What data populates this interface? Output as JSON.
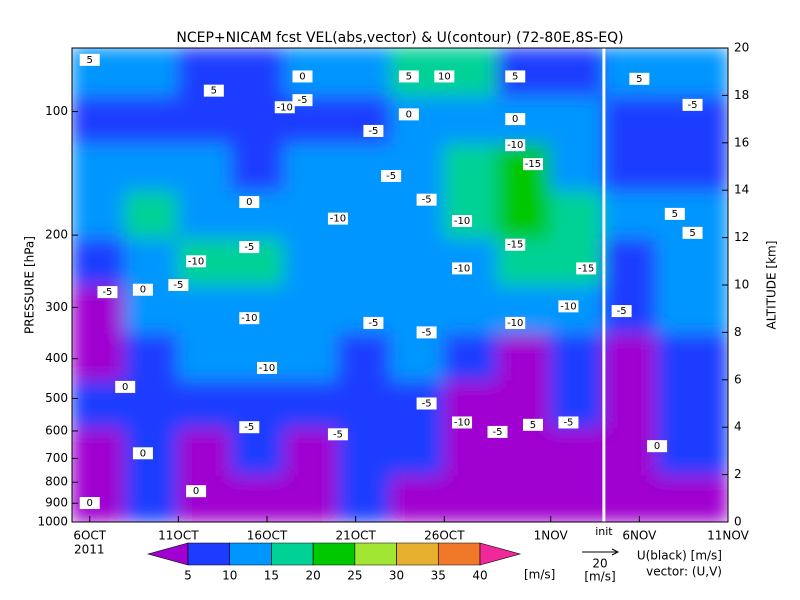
{
  "chart_data": {
    "type": "heatmap",
    "title": "NCEP+NICAM  fcst VEL(abs,vector) & U(contour)   (72-80E,8S-EQ)",
    "ylabel": "PRESSURE [hPa]",
    "y2label": "ALTITUDE [km]",
    "ylim": [
      1000,
      70
    ],
    "yscale": "log",
    "yticks": [
      100,
      200,
      300,
      400,
      500,
      600,
      700,
      800,
      900,
      1000
    ],
    "y2lim": [
      0,
      20
    ],
    "y2ticks": [
      0,
      2,
      4,
      6,
      8,
      10,
      12,
      14,
      16,
      18,
      20
    ],
    "xlim": [
      "2011-10-05",
      "2011-11-11"
    ],
    "xticks": [
      {
        "value": "2011-10-06",
        "label": "6OCT"
      },
      {
        "value": "2011-10-11",
        "label": "11OCT"
      },
      {
        "value": "2011-10-16",
        "label": "16OCT"
      },
      {
        "value": "2011-10-21",
        "label": "21OCT"
      },
      {
        "value": "2011-10-26",
        "label": "26OCT"
      },
      {
        "value": "2011-11-01",
        "label": "1NOV"
      },
      {
        "value": "2011-11-06",
        "label": "6NOV"
      },
      {
        "value": "2011-11-11",
        "label": "11NOV"
      }
    ],
    "x_year_label": "2011",
    "init_line": {
      "x": "2011-11-04",
      "label": "init",
      "color": "#ffffff",
      "label_color": "#00b000"
    },
    "x": [
      "2011-10-05",
      "2011-10-08",
      "2011-10-11",
      "2011-10-14",
      "2011-10-17",
      "2011-10-20",
      "2011-10-23",
      "2011-10-26",
      "2011-10-29",
      "2011-11-01",
      "2011-11-04",
      "2011-11-07"
    ],
    "y": [
      1,
      3,
      5,
      7,
      9,
      11,
      13,
      15,
      17,
      19
    ],
    "z": [
      [
        4,
        7,
        4,
        3,
        4,
        6,
        4,
        3,
        4,
        3,
        4,
        3
      ],
      [
        4,
        8,
        4,
        6,
        4,
        8,
        6,
        4,
        4,
        4,
        4,
        7
      ],
      [
        6,
        8,
        6,
        8,
        9,
        8,
        7,
        3,
        3,
        6,
        4,
        8
      ],
      [
        4,
        9,
        11,
        12,
        11,
        9,
        12,
        8,
        4,
        8,
        4,
        9
      ],
      [
        4,
        11,
        14,
        12,
        11,
        13,
        12,
        12,
        13,
        10,
        8,
        11
      ],
      [
        6,
        13,
        16,
        15,
        13,
        13,
        14,
        14,
        18,
        17,
        9,
        13
      ],
      [
        12,
        16,
        14,
        14,
        13,
        12,
        14,
        19,
        24,
        19,
        10,
        12
      ],
      [
        10,
        13,
        12,
        8,
        10,
        13,
        12,
        18,
        22,
        14,
        9,
        9
      ],
      [
        9,
        7,
        6,
        5,
        8,
        9,
        10,
        12,
        11,
        10,
        6,
        7
      ],
      [
        10,
        12,
        9,
        8,
        10,
        13,
        18,
        15,
        9,
        9,
        12,
        14
      ]
    ],
    "levels": [
      5,
      10,
      15,
      20,
      25,
      30,
      35,
      40
    ],
    "colors": [
      "#a000d0",
      "#1e3cff",
      "#0096ff",
      "#00d296",
      "#00c800",
      "#a0e632",
      "#e6af2d",
      "#f07828",
      "#f0289a"
    ],
    "colorbar_unit": "[m/s]",
    "vector_legend": {
      "magnitude": 20,
      "unit": "[m/s]"
    },
    "legend_text": [
      "U(black) [m/s]",
      "vector: (U,V)"
    ],
    "annotations": [
      {
        "x": "2011-10-06",
        "y": 19.5,
        "text": "5"
      },
      {
        "x": "2011-10-13",
        "y": 18.2,
        "text": "5"
      },
      {
        "x": "2011-10-18",
        "y": 18.8,
        "text": "0"
      },
      {
        "x": "2011-10-24",
        "y": 18.8,
        "text": "5"
      },
      {
        "x": "2011-10-26",
        "y": 18.8,
        "text": "10"
      },
      {
        "x": "2011-10-30",
        "y": 18.8,
        "text": "5"
      },
      {
        "x": "2011-10-17",
        "y": 17.5,
        "text": "-10"
      },
      {
        "x": "2011-10-18",
        "y": 17.8,
        "text": "-5"
      },
      {
        "x": "2011-10-22",
        "y": 16.5,
        "text": "-5"
      },
      {
        "x": "2011-10-24",
        "y": 17.2,
        "text": "0"
      },
      {
        "x": "2011-11-06",
        "y": 18.7,
        "text": "5"
      },
      {
        "x": "2011-11-09",
        "y": 17.6,
        "text": "-5"
      },
      {
        "x": "2011-10-30",
        "y": 17,
        "text": "0"
      },
      {
        "x": "2011-10-30",
        "y": 15.9,
        "text": "-10"
      },
      {
        "x": "2011-10-31",
        "y": 15.1,
        "text": "-15"
      },
      {
        "x": "2011-10-23",
        "y": 14.6,
        "text": "-5"
      },
      {
        "x": "2011-10-15",
        "y": 13.5,
        "text": "0"
      },
      {
        "x": "2011-10-25",
        "y": 13.6,
        "text": "-5"
      },
      {
        "x": "2011-11-08",
        "y": 13,
        "text": "5"
      },
      {
        "x": "2011-10-20",
        "y": 12.8,
        "text": "-10"
      },
      {
        "x": "2011-10-27",
        "y": 12.7,
        "text": "-10"
      },
      {
        "x": "2011-11-09",
        "y": 12.2,
        "text": "5"
      },
      {
        "x": "2011-10-15",
        "y": 11.6,
        "text": "-5"
      },
      {
        "x": "2011-10-30",
        "y": 11.7,
        "text": "-15"
      },
      {
        "x": "2011-10-12",
        "y": 11,
        "text": "-10"
      },
      {
        "x": "2011-10-27",
        "y": 10.7,
        "text": "-10"
      },
      {
        "x": "2011-11-03",
        "y": 10.7,
        "text": "-15"
      },
      {
        "x": "2011-10-07",
        "y": 9.7,
        "text": "-5"
      },
      {
        "x": "2011-10-09",
        "y": 9.8,
        "text": "0"
      },
      {
        "x": "2011-10-11",
        "y": 10,
        "text": "-5"
      },
      {
        "x": "2011-11-02",
        "y": 9.1,
        "text": "-10"
      },
      {
        "x": "2011-11-05",
        "y": 8.9,
        "text": "-5"
      },
      {
        "x": "2011-10-15",
        "y": 8.6,
        "text": "-10"
      },
      {
        "x": "2011-10-30",
        "y": 8.4,
        "text": "-10"
      },
      {
        "x": "2011-10-22",
        "y": 8.4,
        "text": "-5"
      },
      {
        "x": "2011-10-25",
        "y": 8,
        "text": "-5"
      },
      {
        "x": "2011-10-16",
        "y": 6.5,
        "text": "-10"
      },
      {
        "x": "2011-10-08",
        "y": 5.7,
        "text": "0"
      },
      {
        "x": "2011-10-25",
        "y": 5,
        "text": "-5"
      },
      {
        "x": "2011-10-27",
        "y": 4.2,
        "text": "-10"
      },
      {
        "x": "2011-10-15",
        "y": 4,
        "text": "-5"
      },
      {
        "x": "2011-10-20",
        "y": 3.7,
        "text": "-5"
      },
      {
        "x": "2011-10-31",
        "y": 4.1,
        "text": "5"
      },
      {
        "x": "2011-11-02",
        "y": 4.2,
        "text": "-5"
      },
      {
        "x": "2011-10-29",
        "y": 3.8,
        "text": "-5"
      },
      {
        "x": "2011-10-09",
        "y": 2.9,
        "text": "0"
      },
      {
        "x": "2011-11-07",
        "y": 3.2,
        "text": "0"
      },
      {
        "x": "2011-10-12",
        "y": 1.3,
        "text": "0"
      },
      {
        "x": "2011-10-06",
        "y": 0.8,
        "text": "0"
      }
    ]
  }
}
